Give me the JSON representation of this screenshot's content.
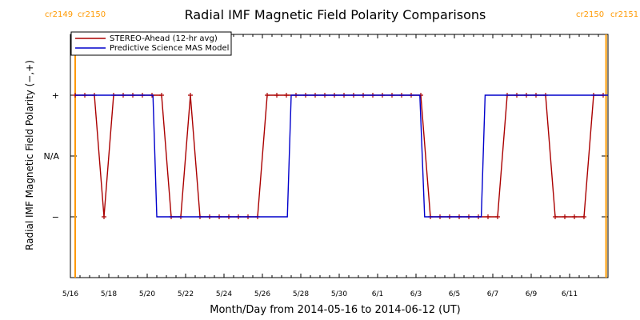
{
  "chart_data": {
    "type": "line",
    "title": "Radial IMF Magnetic Field Polarity Comparisons",
    "xlabel": "Month/Day from 2014-05-16 to 2014-06-12 (UT)",
    "ylabel": "Radial IMF Magnetic Field Polarity (−,+)",
    "x_start_date": "2014-05-16",
    "xlim_days": [
      0,
      28
    ],
    "x_ticks": [
      {
        "day": 0,
        "label": "5/16"
      },
      {
        "day": 2,
        "label": "5/18"
      },
      {
        "day": 4,
        "label": "5/20"
      },
      {
        "day": 6,
        "label": "5/22"
      },
      {
        "day": 8,
        "label": "5/24"
      },
      {
        "day": 10,
        "label": "5/26"
      },
      {
        "day": 12,
        "label": "5/28"
      },
      {
        "day": 14,
        "label": "5/30"
      },
      {
        "day": 16,
        "label": "6/1"
      },
      {
        "day": 18,
        "label": "6/3"
      },
      {
        "day": 20,
        "label": "6/5"
      },
      {
        "day": 22,
        "label": "6/7"
      },
      {
        "day": 24,
        "label": "6/9"
      },
      {
        "day": 26,
        "label": "6/11"
      }
    ],
    "y_ticks": [
      {
        "value": 1,
        "label": "+"
      },
      {
        "value": 0,
        "label": "N/A"
      },
      {
        "value": -1,
        "label": "−"
      }
    ],
    "ylim": [
      -2,
      2
    ],
    "carrington_markers": [
      {
        "day": 0.25,
        "left_label": "cr2149",
        "right_label": "cr2150",
        "label_position": "top-left",
        "color": "#ff9900"
      },
      {
        "day": 27.9,
        "left_label": "cr2150",
        "right_label": "cr2151",
        "label_position": "top-right",
        "color": "#ff9900"
      }
    ],
    "legend": {
      "position": "top-left"
    },
    "series": [
      {
        "name": "STEREO-Ahead (12-hr avg)",
        "color": "#aa0000",
        "markers": true,
        "x": [
          0.25,
          0.75,
          1.25,
          1.75,
          2.25,
          2.75,
          3.25,
          3.75,
          4.25,
          4.75,
          5.25,
          5.75,
          6.25,
          6.75,
          7.25,
          7.75,
          8.25,
          8.75,
          9.25,
          9.75,
          10.25,
          10.75,
          11.25,
          11.75,
          12.25,
          12.75,
          13.25,
          13.75,
          14.25,
          14.75,
          15.25,
          15.75,
          16.25,
          16.75,
          17.25,
          17.75,
          18.25,
          18.75,
          19.25,
          19.75,
          20.25,
          20.75,
          21.25,
          21.75,
          22.25,
          22.75,
          23.25,
          23.75,
          24.25,
          24.75,
          25.25,
          25.75,
          26.25,
          26.75,
          27.25,
          27.75
        ],
        "values": [
          1,
          1,
          1,
          -1,
          1,
          1,
          1,
          1,
          1,
          1,
          -1,
          -1,
          1,
          -1,
          -1,
          -1,
          -1,
          -1,
          -1,
          -1,
          1,
          1,
          1,
          1,
          1,
          1,
          1,
          1,
          1,
          1,
          1,
          1,
          1,
          1,
          1,
          1,
          1,
          -1,
          -1,
          -1,
          -1,
          -1,
          -1,
          -1,
          -1,
          1,
          1,
          1,
          1,
          1,
          -1,
          -1,
          -1,
          -1,
          1,
          1
        ]
      },
      {
        "name": "Predictive Science MAS Model",
        "color": "#0000cc",
        "markers": false,
        "x": [
          0.25,
          4.3,
          4.5,
          11.3,
          11.5,
          18.2,
          18.45,
          21.4,
          21.6,
          28
        ],
        "values": [
          1,
          1,
          -1,
          -1,
          1,
          1,
          -1,
          -1,
          1,
          1
        ]
      }
    ]
  }
}
